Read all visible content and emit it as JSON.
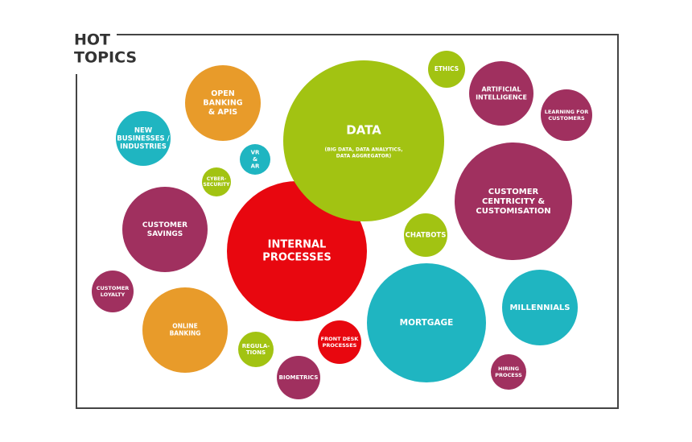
{
  "header": {
    "title": [
      "HOT",
      "TOPICS"
    ]
  },
  "nodes": [
    {
      "label": [
        "INTERNAL",
        "PROCESSES"
      ]
    },
    {
      "label": [
        "DATA"
      ],
      "sublabel": [
        "(BIG DATA, DATA ANALYTICS,",
        "DATA AGGREGATOR)"
      ]
    },
    {
      "label": [
        "OPEN",
        "BANKING",
        "& APIS"
      ]
    },
    {
      "label": [
        "NEW",
        "BUSINESSES /",
        "INDUSTRIES"
      ]
    },
    {
      "label": [
        "VR",
        "&",
        "AR"
      ]
    },
    {
      "label": [
        "CYBER-",
        "SECURITY"
      ]
    },
    {
      "label": [
        "ETHICS"
      ]
    },
    {
      "label": [
        "ARTIFICIAL",
        "INTELLIGENCE"
      ]
    },
    {
      "label": [
        "LEARNING FOR",
        "CUSTOMERS"
      ]
    },
    {
      "label": [
        "CUSTOMER",
        "CENTRICITY &",
        "CUSTOMISATION"
      ]
    },
    {
      "label": [
        "CUSTOMER",
        "SAVINGS"
      ]
    },
    {
      "label": [
        "CHATBOTS"
      ]
    },
    {
      "label": [
        "CUSTOMER",
        "LOYALTY"
      ]
    },
    {
      "label": [
        "ONLINE",
        "BANKING"
      ]
    },
    {
      "label": [
        "REGULA-",
        "TIONS"
      ]
    },
    {
      "label": [
        "FRONT DESK",
        "PROCESSES"
      ]
    },
    {
      "label": [
        "MORTGAGE"
      ]
    },
    {
      "label": [
        "MILLENNIALS"
      ]
    },
    {
      "label": [
        "BIOMETRICS"
      ]
    },
    {
      "label": [
        "HIRING",
        "PROCESS"
      ]
    }
  ]
}
